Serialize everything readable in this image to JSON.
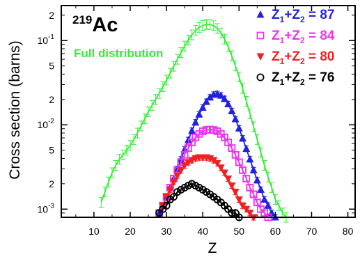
{
  "chart_data": {
    "type": "scatter",
    "title": "Ac",
    "title_superscript": "219",
    "xlabel": "Z",
    "ylabel": "Cross section (barns)",
    "xlim": [
      1,
      82
    ],
    "ylim": [
      0.0008,
      0.26
    ],
    "yscale": "log",
    "grid": false,
    "legend_position": "top-right",
    "x_ticks": [
      10,
      20,
      30,
      40,
      50,
      60,
      70,
      80
    ],
    "x_tick_labels": [
      "10",
      "20",
      "30",
      "40",
      "50",
      "60",
      "70",
      "80"
    ],
    "y_ticks": [
      0.001,
      0.002,
      0.005,
      0.01,
      0.02,
      0.05,
      0.1,
      0.2
    ],
    "y_tick_labels": [
      {
        "base": "10",
        "exp": "-3"
      },
      {
        "base": "2",
        "exp": ""
      },
      {
        "base": "5",
        "exp": ""
      },
      {
        "base": "10",
        "exp": "-2"
      },
      {
        "base": "2",
        "exp": ""
      },
      {
        "base": "5",
        "exp": ""
      },
      {
        "base": "10",
        "exp": "-1"
      },
      {
        "base": "2",
        "exp": ""
      }
    ],
    "series": [
      {
        "name": "Full distribution",
        "color": "#33ee33",
        "marker": "bar",
        "x": [
          12,
          13,
          14,
          15,
          16,
          17,
          18,
          19,
          20,
          21,
          22,
          23,
          24,
          25,
          26,
          27,
          28,
          29,
          30,
          31,
          32,
          33,
          34,
          35,
          36,
          37,
          38,
          39,
          40,
          41,
          42,
          43,
          44,
          45,
          46,
          47,
          48,
          49,
          50,
          51,
          52,
          53,
          54,
          55,
          56,
          57,
          58,
          59,
          60,
          61,
          62,
          63
        ],
        "y": [
          0.0012,
          0.0016,
          0.0021,
          0.0027,
          0.0033,
          0.0039,
          0.0044,
          0.005,
          0.0057,
          0.0067,
          0.008,
          0.0097,
          0.0118,
          0.0143,
          0.017,
          0.02,
          0.0236,
          0.0283,
          0.034,
          0.041,
          0.0495,
          0.06,
          0.072,
          0.086,
          0.101,
          0.117,
          0.132,
          0.143,
          0.151,
          0.155,
          0.155,
          0.15,
          0.139,
          0.123,
          0.104,
          0.084,
          0.066,
          0.05,
          0.037,
          0.027,
          0.019,
          0.0135,
          0.0095,
          0.0067,
          0.0047,
          0.0033,
          0.0024,
          0.0018,
          0.0013,
          0.0011,
          0.0009,
          0.0008
        ]
      },
      {
        "name": "Z1+Z2 = 87",
        "label_parts": [
          "Z",
          "1",
          "+Z",
          "2",
          " = 87"
        ],
        "color": "#2222dd",
        "marker": "triangle-up",
        "x": [
          28,
          29,
          30,
          31,
          32,
          33,
          34,
          35,
          36,
          37,
          38,
          39,
          40,
          41,
          42,
          43,
          44,
          45,
          46,
          47,
          48,
          49,
          50,
          51,
          52,
          53,
          54,
          55,
          56,
          57,
          58,
          59,
          60
        ],
        "y": [
          0.0009,
          0.0011,
          0.0014,
          0.0018,
          0.0023,
          0.003,
          0.0039,
          0.0051,
          0.0066,
          0.0085,
          0.0107,
          0.0133,
          0.016,
          0.0188,
          0.0212,
          0.0228,
          0.0232,
          0.0223,
          0.0203,
          0.0176,
          0.0146,
          0.0117,
          0.0091,
          0.0069,
          0.0052,
          0.0039,
          0.0029,
          0.0022,
          0.0017,
          0.0013,
          0.0011,
          0.0009,
          0.0008
        ]
      },
      {
        "name": "Z1+Z2 = 84",
        "label_parts": [
          "Z",
          "1",
          "+Z",
          "2",
          " = 84"
        ],
        "color": "#ee33ee",
        "marker": "square-open",
        "x": [
          28,
          29,
          30,
          31,
          32,
          33,
          34,
          35,
          36,
          37,
          38,
          39,
          40,
          41,
          42,
          43,
          44,
          45,
          46,
          47,
          48,
          49,
          50,
          51,
          52,
          53,
          54,
          55,
          56,
          57,
          58
        ],
        "y": [
          0.0009,
          0.0011,
          0.0014,
          0.0018,
          0.0023,
          0.0029,
          0.0036,
          0.0044,
          0.0053,
          0.0062,
          0.0071,
          0.0078,
          0.0084,
          0.0087,
          0.0088,
          0.0087,
          0.0084,
          0.0078,
          0.0071,
          0.0062,
          0.0053,
          0.0044,
          0.0036,
          0.0029,
          0.0023,
          0.0018,
          0.0015,
          0.0012,
          0.001,
          0.0009,
          0.0008
        ]
      },
      {
        "name": "Z1+Z2 = 80",
        "label_parts": [
          "Z",
          "1",
          "+Z",
          "2",
          " = 80"
        ],
        "color": "#ee2222",
        "marker": "triangle-down",
        "x": [
          29,
          30,
          31,
          32,
          33,
          34,
          35,
          36,
          37,
          38,
          39,
          40,
          41,
          42,
          43,
          44,
          45,
          46,
          47,
          48,
          49,
          50,
          51,
          52,
          53,
          54
        ],
        "y": [
          0.0011,
          0.0014,
          0.0017,
          0.0021,
          0.0025,
          0.0029,
          0.0033,
          0.0036,
          0.0038,
          0.004,
          0.0041,
          0.0041,
          0.0041,
          0.004,
          0.0038,
          0.0035,
          0.0031,
          0.0027,
          0.0023,
          0.0019,
          0.0016,
          0.0013,
          0.0011,
          0.001,
          0.0009,
          0.0008
        ]
      },
      {
        "name": "Z1+Z2 = 76",
        "label_parts": [
          "Z",
          "1",
          "+Z",
          "2",
          " = 76"
        ],
        "color": "#000000",
        "marker": "circle-open",
        "x": [
          28,
          29,
          30,
          31,
          32,
          33,
          34,
          35,
          36,
          37,
          38,
          39,
          40,
          41,
          42,
          43,
          44,
          45,
          46,
          47,
          48,
          49,
          50
        ],
        "y": [
          0.0009,
          0.001,
          0.0011,
          0.0013,
          0.0014,
          0.0016,
          0.0017,
          0.0018,
          0.0019,
          0.002,
          0.0019,
          0.0018,
          0.0017,
          0.0016,
          0.0015,
          0.0014,
          0.0013,
          0.0012,
          0.0011,
          0.001,
          0.0009,
          0.0009,
          0.0008
        ]
      }
    ]
  }
}
